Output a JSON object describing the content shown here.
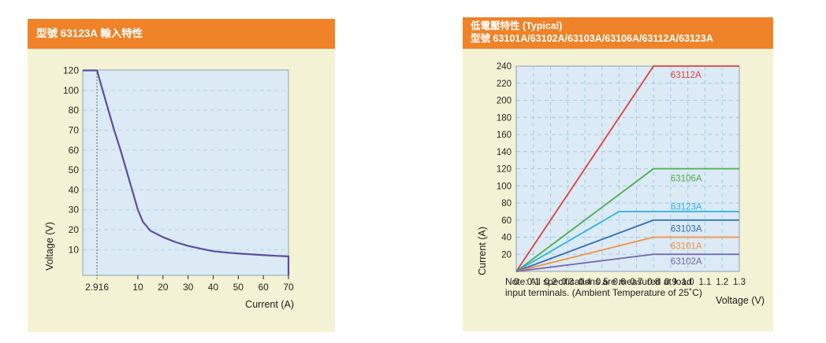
{
  "theme": {
    "header_bg": "#f08227",
    "header_text": "#ffffff",
    "panel_bg": "#f4f2d4",
    "plot_bg": "#dbeaf4",
    "plot_border": "#8ba2b2",
    "grid_left": "#b7d7ea",
    "grid_right": "#a6cde9",
    "tick_text": "#272525",
    "axis_text": "#1c1b1a",
    "note_text": "#1c1b1a",
    "dotted_line": "#4a4a4a"
  },
  "panels": {
    "left": {
      "header_lines": [
        "型號 63123A 輸入特性"
      ]
    },
    "right": {
      "header_lines": [
        "低電壓特性 (Typical)",
        "型號 63101A/63102A/63103A/63106A/63112A/63123A"
      ],
      "note_lines": [
        "Note: All specifications are measured at load",
        "input terminals. (Ambient Temperature of 25˚C)"
      ]
    }
  },
  "chart_data": [
    {
      "id": "left",
      "type": "line",
      "title": "型號 63123A 輸入特性",
      "xlabel": "Current (A)",
      "ylabel": "Voltage (V)",
      "xlim": [
        0,
        70
      ],
      "ylim": [
        0,
        120
      ],
      "grid": {
        "horizontal": true,
        "vertical": false
      },
      "legend_position": "none",
      "x_ticks": [
        {
          "v": 2.916,
          "label": "2.916"
        },
        {
          "v": 10,
          "label": "10"
        },
        {
          "v": 20,
          "label": "20"
        },
        {
          "v": 30,
          "label": "30"
        },
        {
          "v": 40,
          "label": "40"
        },
        {
          "v": 50,
          "label": "50"
        },
        {
          "v": 60,
          "label": "60"
        },
        {
          "v": 70,
          "label": "70"
        }
      ],
      "y_ticks": [
        {
          "v": 10,
          "label": "10"
        },
        {
          "v": 20,
          "label": "20"
        },
        {
          "v": 30,
          "label": "30"
        },
        {
          "v": 40,
          "label": "40"
        },
        {
          "v": 50,
          "label": "50"
        },
        {
          "v": 60,
          "label": "60"
        },
        {
          "v": 70,
          "label": "70"
        },
        {
          "v": 80,
          "label": "80"
        },
        {
          "v": 100,
          "label": "100"
        },
        {
          "v": 120,
          "label": "120"
        }
      ],
      "x_scale_map": [
        [
          0,
          0
        ],
        [
          2.916,
          0.069
        ],
        [
          10,
          0.268
        ],
        [
          70,
          1.0
        ]
      ],
      "y_scale_map": [
        [
          0,
          1.0
        ],
        [
          10,
          0.875
        ],
        [
          80,
          0.196
        ],
        [
          120,
          0.002
        ]
      ],
      "reference_line": {
        "x": 2.916,
        "style": "dotted"
      },
      "series": [
        {
          "name": "63123A",
          "color": "#5b4da0",
          "label": null,
          "points": [
            [
              0,
              120
            ],
            [
              2.916,
              120
            ],
            [
              4.9,
              80
            ],
            [
              5.9,
              70
            ],
            [
              7,
              60
            ],
            [
              8,
              50
            ],
            [
              9,
              40
            ],
            [
              10,
              30
            ],
            [
              12,
              24
            ],
            [
              15,
              19.5
            ],
            [
              20,
              16.3
            ],
            [
              25,
              13.8
            ],
            [
              30,
              11.9
            ],
            [
              35,
              10.5
            ],
            [
              40,
              9.4
            ],
            [
              45,
              8.9
            ],
            [
              50,
              8.5
            ],
            [
              55,
              8.2
            ],
            [
              60,
              7.9
            ],
            [
              65,
              7.6
            ],
            [
              70,
              7.4
            ],
            [
              70,
              0
            ]
          ]
        }
      ]
    },
    {
      "id": "right",
      "type": "line",
      "title": "低電壓特性 (Typical) 型號 63101A/63102A/63103A/63106A/63112A/63123A",
      "xlabel": "Voltage (V)",
      "ylabel": "Current (A)",
      "xlim": [
        0,
        1.3
      ],
      "ylim": [
        0,
        240
      ],
      "grid": {
        "horizontal": true,
        "vertical": true
      },
      "legend_position": "inline-labels",
      "note": "Note: All specifications are measured at load input terminals. (Ambient Temperature of 25˚C)",
      "x_ticks": [
        {
          "v": 0,
          "label": "0"
        },
        {
          "v": 0.1,
          "label": "0.1"
        },
        {
          "v": 0.2,
          "label": "0.2"
        },
        {
          "v": 0.3,
          "label": "0.3"
        },
        {
          "v": 0.4,
          "label": "0.4"
        },
        {
          "v": 0.5,
          "label": "0.5"
        },
        {
          "v": 0.6,
          "label": "0.6"
        },
        {
          "v": 0.7,
          "label": "0.7"
        },
        {
          "v": 0.8,
          "label": "0.8"
        },
        {
          "v": 0.9,
          "label": "0.9"
        },
        {
          "v": 1.0,
          "label": "1.0"
        },
        {
          "v": 1.1,
          "label": "1.1"
        },
        {
          "v": 1.2,
          "label": "1.2"
        },
        {
          "v": 1.3,
          "label": "1.3"
        }
      ],
      "y_ticks": [
        {
          "v": 20,
          "label": "20"
        },
        {
          "v": 40,
          "label": "40"
        },
        {
          "v": 60,
          "label": "60"
        },
        {
          "v": 80,
          "label": "80"
        },
        {
          "v": 100,
          "label": "100"
        },
        {
          "v": 120,
          "label": "120"
        },
        {
          "v": 140,
          "label": "140"
        },
        {
          "v": 160,
          "label": "160"
        },
        {
          "v": 180,
          "label": "180"
        },
        {
          "v": 200,
          "label": "200"
        },
        {
          "v": 220,
          "label": "220"
        },
        {
          "v": 240,
          "label": "240"
        }
      ],
      "x_scale_map": [
        [
          0,
          0
        ],
        [
          1.3,
          1.0
        ]
      ],
      "y_scale_map": [
        [
          0,
          1.0
        ],
        [
          240,
          0
        ]
      ],
      "series": [
        {
          "name": "63112A",
          "color": "#e2403f",
          "points": [
            [
              0,
              0
            ],
            [
              0.8,
              240
            ],
            [
              1.3,
              240
            ]
          ],
          "label": {
            "text": "63112A",
            "x": 0.9,
            "y": 230
          }
        },
        {
          "name": "63106A",
          "color": "#4bae4f",
          "points": [
            [
              0,
              0
            ],
            [
              0.8,
              120
            ],
            [
              1.3,
              120
            ]
          ],
          "label": {
            "text": "63106A",
            "x": 0.9,
            "y": 109
          }
        },
        {
          "name": "63123A",
          "color": "#2fb0e8",
          "points": [
            [
              0,
              0
            ],
            [
              0.6,
              70
            ],
            [
              1.3,
              70
            ]
          ],
          "label": {
            "text": "63123A",
            "x": 0.9,
            "y": 76
          }
        },
        {
          "name": "63103A",
          "color": "#2e6cb5",
          "points": [
            [
              0,
              0
            ],
            [
              0.8,
              60
            ],
            [
              1.3,
              60
            ]
          ],
          "label": {
            "text": "63103A",
            "x": 0.9,
            "y": 50
          }
        },
        {
          "name": "63101A",
          "color": "#f3913e",
          "points": [
            [
              0,
              0
            ],
            [
              0.8,
              40
            ],
            [
              1.3,
              40
            ]
          ],
          "label": {
            "text": "63101A",
            "x": 0.9,
            "y": 30
          }
        },
        {
          "name": "63102A",
          "color": "#7563ab",
          "points": [
            [
              0,
              0
            ],
            [
              0.8,
              20
            ],
            [
              1.3,
              20
            ]
          ],
          "label": {
            "text": "63102A",
            "x": 0.9,
            "y": 12
          }
        }
      ]
    }
  ]
}
